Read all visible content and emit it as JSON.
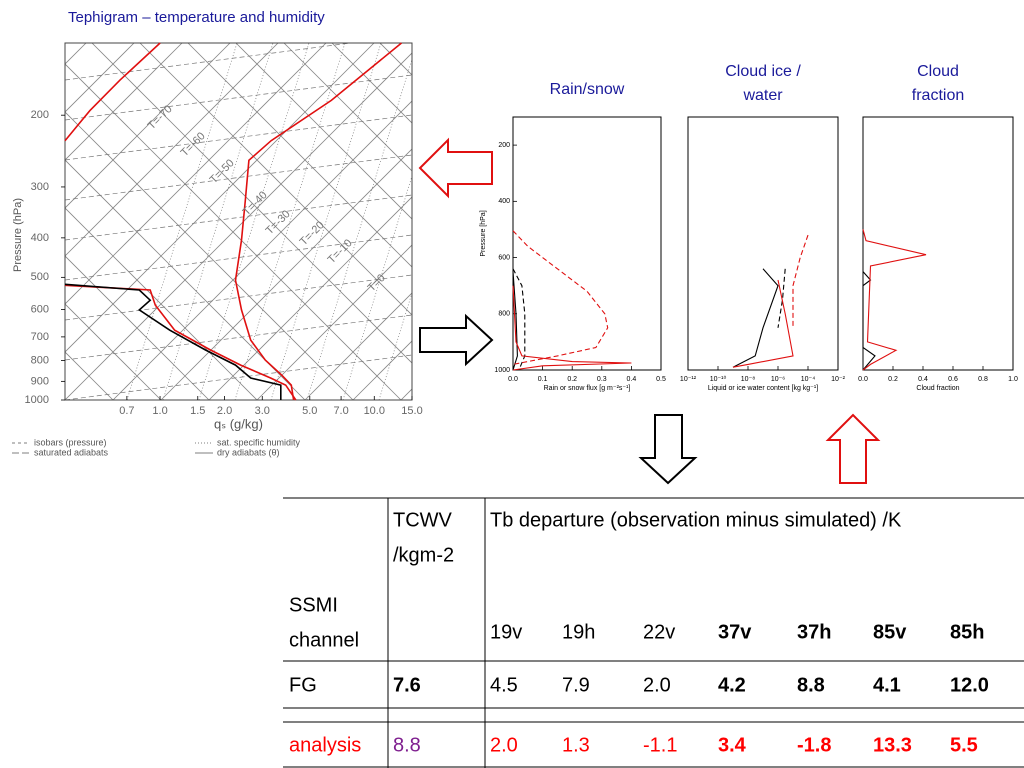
{
  "chart_data": [
    {
      "type": "tephigram",
      "title": "Tephigram – temperature and humidity",
      "ylabel": "Pressure (hPa)",
      "xlabel": "qₛ (g/kg)",
      "ylog": true,
      "ylim": [
        1000,
        133
      ],
      "yticks": [
        200,
        300,
        400,
        500,
        600,
        700,
        800,
        900,
        1000
      ],
      "xlog": true,
      "xlim": [
        0.36,
        15
      ],
      "xticks": [
        0.7,
        {
          "value": 1,
          "label": "1.0"
        },
        1.5,
        {
          "value": 2,
          "label": "2.0"
        },
        {
          "value": 3,
          "label": "3.0"
        },
        {
          "value": 5,
          "label": "5.0"
        },
        {
          "value": 7,
          "label": "7.0"
        },
        {
          "value": 10,
          "label": "10.0"
        },
        {
          "value": 15,
          "label": "15.0"
        }
      ],
      "isotherm_labels": [
        "T=-70",
        "T=-60",
        "T=-50",
        "T=-40",
        "T=-30",
        "T=-20",
        "T=-10",
        "T=0"
      ],
      "legend": [
        "isobars (pressure)",
        "saturated adiabats",
        "sat. specific humidity",
        "dry adiabats (θ)"
      ],
      "series": [
        {
          "color": "#e01010",
          "style": "solid",
          "values": [
            13.4,
            6.3,
            3.3,
            2.6,
            2.5,
            2.4,
            2.25,
            2.4,
            2.65,
            3.1,
            3.7,
            4.1,
            4.2
          ],
          "y": [
            133,
            184,
            231,
            258,
            324,
            405,
            508,
            601,
            713,
            798,
            869,
            919,
            1000
          ]
        },
        {
          "color": "#e01010",
          "style": "solid",
          "values": [
            1.0,
            0.65,
            0.47,
            0.36,
            null,
            0.36,
            0.9,
            0.95,
            1.17,
            1.72,
            2.38,
            3.28,
            3.86,
            4.3
          ],
          "y": [
            133,
            164,
            195,
            231,
            null,
            523,
            537,
            585,
            674,
            754,
            821,
            883,
            919,
            1000
          ]
        },
        {
          "color": "#000000",
          "style": "solid",
          "values": [
            0.36,
            0.8,
            0.9,
            0.8,
            1.11,
            1.63,
            2.25,
            2.65,
            3.66,
            3.66
          ],
          "y": [
            520,
            537,
            569,
            601,
            674,
            754,
            821,
            883,
            919,
            1000
          ]
        }
      ]
    },
    {
      "type": "profile",
      "title": [
        "Rain/snow"
      ],
      "ylabel": "Pressure [hPa]",
      "xlabel": "Rain or snow flux [g m⁻²s⁻¹]",
      "ylim": [
        1000,
        100
      ],
      "yticks": [
        200,
        400,
        600,
        800,
        1000
      ],
      "xlim": [
        0,
        0.5
      ],
      "xticks": [
        {
          "value": 0,
          "label": "0.0"
        },
        0.1,
        0.2,
        0.3,
        0.4,
        0.5
      ],
      "series": [
        {
          "color": "#000000",
          "style": "solid",
          "values": [
            0,
            0.01,
            0.015,
            0
          ],
          "y": [
            650,
            800,
            950,
            1000
          ]
        },
        {
          "color": "#000000",
          "style": "dashed",
          "values": [
            0,
            0.03,
            0.04,
            0.04,
            0.02
          ],
          "y": [
            640,
            700,
            800,
            950,
            1000
          ]
        },
        {
          "color": "#e01010",
          "style": "solid",
          "values": [
            0,
            0.01,
            0.03,
            0.2,
            0.4,
            0.1,
            0
          ],
          "y": [
            700,
            900,
            950,
            970,
            975,
            985,
            1000
          ]
        },
        {
          "color": "#e01010",
          "style": "dashed",
          "values": [
            0,
            0.05,
            0.15,
            0.25,
            0.31,
            0.32,
            0.28,
            0.15,
            0
          ],
          "y": [
            505,
            560,
            640,
            720,
            800,
            850,
            920,
            950,
            980
          ]
        }
      ]
    },
    {
      "type": "profile",
      "title": [
        "Cloud ice /",
        "water"
      ],
      "xlabel": "Liquid or ice water content [kg kg⁻¹]",
      "ylim": [
        1000,
        100
      ],
      "xlog": true,
      "xlim": [
        1e-12,
        0.01
      ],
      "xticks": [
        {
          "value": 1e-12,
          "label": "10⁻¹²"
        },
        {
          "value": 1e-10,
          "label": "10⁻¹⁰"
        },
        {
          "value": 1e-08,
          "label": "10⁻⁸"
        },
        {
          "value": 1e-06,
          "label": "10⁻⁶"
        },
        {
          "value": 0.0001,
          "label": "10⁻⁴"
        },
        {
          "value": 0.01,
          "label": "10⁻²"
        }
      ],
      "series": [
        {
          "color": "#000000",
          "style": "solid",
          "values": [
            1e-07,
            1e-06,
            1e-07,
            3e-08,
            1e-09
          ],
          "y": [
            640,
            700,
            850,
            950,
            990
          ]
        },
        {
          "color": "#000000",
          "style": "dashed",
          "values": [
            3e-06,
            2e-06,
            1e-06
          ],
          "y": [
            640,
            750,
            850
          ]
        },
        {
          "color": "#e01010",
          "style": "solid",
          "values": [
            1e-06,
            3e-06,
            1e-05,
            1e-08,
            1e-09
          ],
          "y": [
            680,
            800,
            950,
            980,
            990
          ]
        },
        {
          "color": "#e01010",
          "style": "dashed",
          "values": [
            0.0001,
            3e-05,
            1e-05,
            1e-05
          ],
          "y": [
            520,
            600,
            700,
            850
          ]
        }
      ]
    },
    {
      "type": "profile",
      "title": [
        "Cloud",
        "fraction"
      ],
      "xlabel": "Cloud fraction",
      "ylim": [
        1000,
        100
      ],
      "xlim": [
        0,
        1
      ],
      "xticks": [
        {
          "value": 0,
          "label": "0.0"
        },
        0.2,
        0.4,
        0.6,
        0.8,
        {
          "value": 1,
          "label": "1.0"
        }
      ],
      "series": [
        {
          "color": "#000000",
          "style": "solid",
          "values": [
            0,
            0.05,
            0,
            0,
            0.08,
            0
          ],
          "y": [
            650,
            680,
            700,
            920,
            950,
            1000
          ]
        },
        {
          "color": "#e01010",
          "style": "solid",
          "values": [
            0,
            0.02,
            0.42,
            0.05,
            0.03,
            0.22,
            0.05,
            0
          ],
          "y": [
            500,
            540,
            590,
            630,
            900,
            930,
            980,
            1000
          ]
        }
      ]
    }
  ],
  "table": {
    "tcwv_header": [
      "TCWV",
      "/kgm-2"
    ],
    "tb_header": "Tb departure (observation minus simulated) /K",
    "channel_label": [
      "SSMI",
      "channel"
    ],
    "channels": [
      "19v",
      "19h",
      "22v",
      "37v",
      "37h",
      "85v",
      "85h"
    ],
    "rows": [
      {
        "label": "FG",
        "color": "#000000",
        "tcwv": "7.6",
        "tcwv_color": "#000000",
        "values": [
          "4.5",
          "7.9",
          "2.0",
          "4.2",
          "8.8",
          "4.1",
          "12.0"
        ]
      },
      {
        "label": "analysis",
        "color": "#ff0000",
        "tcwv": "8.8",
        "tcwv_color": "#7f1f8f",
        "values": [
          "2.0",
          "1.3",
          "-1.1",
          "3.4",
          "-1.8",
          "13.3",
          "5.5"
        ]
      }
    ]
  }
}
